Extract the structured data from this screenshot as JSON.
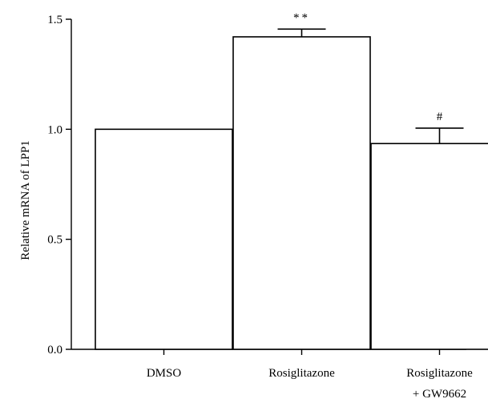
{
  "chart_data": {
    "type": "bar",
    "categories": [
      [
        "DMSO"
      ],
      [
        "Rosiglitazone"
      ],
      [
        "Rosiglitazone",
        "+ GW9662"
      ]
    ],
    "values": [
      1.0,
      1.42,
      0.935
    ],
    "errors": [
      0.0,
      0.035,
      0.07
    ],
    "annotations": [
      "",
      "**",
      "#"
    ],
    "ylabel": "Relative mRNA of LPP1",
    "xlabel": "",
    "title": "",
    "ylim": [
      0,
      1.5
    ],
    "yticks": [
      0.0,
      0.5,
      1.0,
      1.5
    ],
    "ytick_labels": [
      "0.0",
      "0.5",
      "1.0",
      "1.5"
    ],
    "grid": false,
    "legend": "none",
    "colors": {
      "bar_fill": "#ffffff",
      "bar_stroke": "#000000",
      "axis": "#000000"
    }
  }
}
